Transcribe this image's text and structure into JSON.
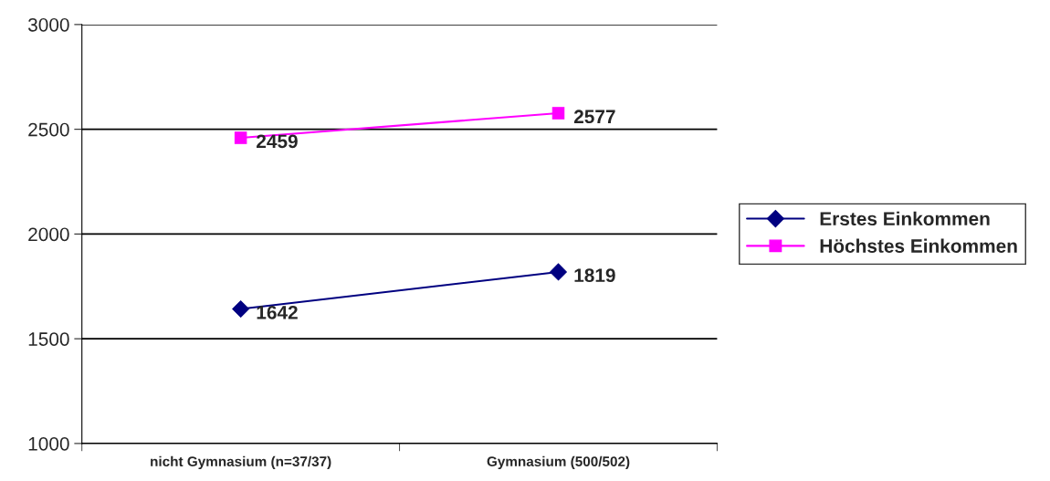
{
  "chart_data": {
    "type": "line",
    "categories": [
      "nicht Gymnasium (n=37/37)",
      "Gymnasium (500/502)"
    ],
    "series": [
      {
        "name": "Erstes Einkommen",
        "color": "#000080",
        "marker": "diamond",
        "values": [
          1642,
          1819
        ]
      },
      {
        "name": "Höchstes Einkommen",
        "color": "#ff00ff",
        "marker": "square",
        "values": [
          2459,
          2577
        ]
      }
    ],
    "ylim": [
      1000,
      3000
    ],
    "yticks": [
      1000,
      1500,
      2000,
      2500,
      3000
    ],
    "grid": "y",
    "legend": "right",
    "data_labels": true,
    "line_style": "solid"
  }
}
